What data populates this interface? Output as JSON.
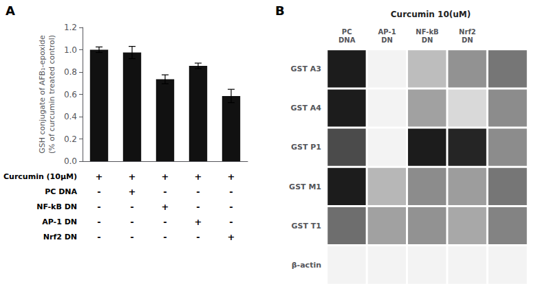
{
  "chart_data": [
    {
      "type": "bar",
      "panel_label": "A",
      "categories": [
        null,
        null,
        null,
        null,
        null
      ],
      "values": [
        1.0,
        0.975,
        0.735,
        0.855,
        0.585
      ],
      "errors": [
        0.025,
        0.055,
        0.04,
        0.025,
        0.06
      ],
      "color": "#111111",
      "ylabel": "GSH conjugate of AFB₁-epoxide\n(% of curcumin treated control)",
      "ylim": [
        0,
        1.2
      ],
      "yticks": [
        {
          "value": 0,
          "label": "0.0"
        },
        0.2,
        0.4,
        0.6,
        0.8,
        {
          "value": 1,
          "label": "1.0"
        },
        1.2
      ],
      "grid": false,
      "tick_labels": "y",
      "table": {
        "row_labels": [
          "Curcumin (10μM)",
          "PC DNA",
          "NF-kB DN",
          "AP-1 DN",
          "Nrf2 DN"
        ],
        "cells": [
          [
            "+",
            "+",
            "+",
            "+",
            "+"
          ],
          [
            "-",
            "+",
            "-",
            "-",
            "-"
          ],
          [
            "-",
            "-",
            "+",
            "-",
            "-"
          ],
          [
            "-",
            "-",
            "-",
            "+",
            "-"
          ],
          [
            "-",
            "-",
            "-",
            "-",
            "+"
          ]
        ]
      }
    },
    {
      "type": "heatmap",
      "panel_label": "B",
      "title": "Curcumin 10(uM)",
      "categories": [
        "PC\nDNA",
        "AP-1\nDN",
        "NF-kB\nDN",
        "Nrf2\nDN",
        null
      ],
      "rows": [
        "GST A3",
        "GST A4",
        "GST P1",
        "GST M1",
        "GST T1",
        "β-actin"
      ],
      "cells": [
        [
          0.0,
          1.0,
          0.75,
          0.55,
          0.42
        ],
        [
          0.0,
          1.0,
          0.62,
          0.88,
          0.52
        ],
        [
          0.22,
          1.0,
          0.0,
          0.04,
          0.52
        ],
        [
          0.0,
          0.72,
          0.52,
          0.6,
          0.42
        ],
        [
          0.38,
          0.62,
          0.55,
          0.65,
          0.48
        ],
        [
          1.0,
          1.0,
          1.0,
          1.0,
          1.0
        ]
      ],
      "value_range": [
        0,
        1
      ],
      "colors": [
        "#1c1c1c",
        "#f3f3f3"
      ],
      "grid": false
    }
  ]
}
